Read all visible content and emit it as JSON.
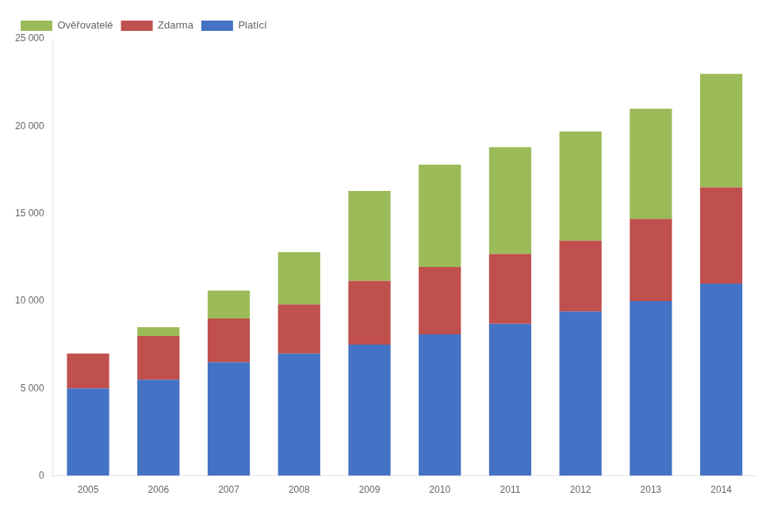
{
  "chart_data": {
    "type": "bar",
    "stacked": true,
    "categories": [
      "2005",
      "2006",
      "2007",
      "2008",
      "2009",
      "2010",
      "2011",
      "2012",
      "2013",
      "2014"
    ],
    "series": [
      {
        "name": "Platící",
        "color": "#4472C4",
        "values": [
          5000,
          5500,
          6500,
          7000,
          7500,
          8100,
          8700,
          9400,
          10000,
          11000
        ]
      },
      {
        "name": "Zdarma",
        "color": "#C0504D",
        "values": [
          2000,
          2500,
          2500,
          2800,
          3650,
          3850,
          4000,
          4050,
          4700,
          5500
        ]
      },
      {
        "name": "Ověřovatelé",
        "color": "#9BBB59",
        "values": [
          0,
          500,
          1600,
          3000,
          5150,
          5850,
          6100,
          6250,
          6300,
          6500
        ]
      }
    ],
    "ylim": [
      0,
      25000
    ],
    "yticks": [
      0,
      {
        "value": 5000,
        "label": "5 000"
      },
      {
        "value": 10000,
        "label": "10 000"
      },
      {
        "value": 15000,
        "label": "15 000"
      },
      {
        "value": 20000,
        "label": "20 000"
      },
      {
        "value": 25000,
        "label": "25 000"
      }
    ],
    "grid": false,
    "legend": "upper left"
  }
}
